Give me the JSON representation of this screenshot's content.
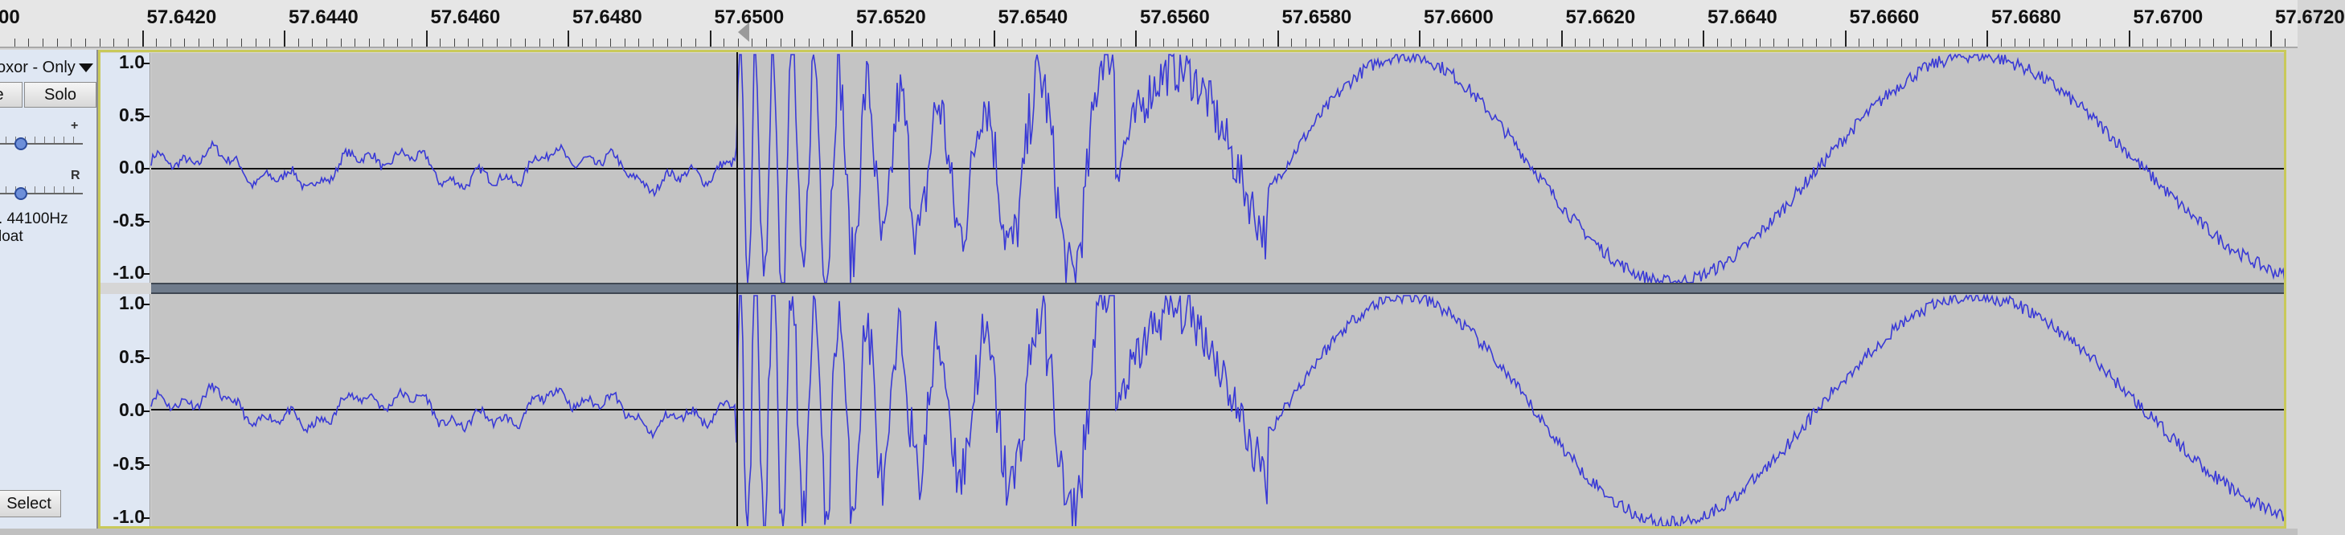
{
  "timeline": {
    "ticks": [
      {
        "label": "00"
      },
      {
        "label": "57.6420"
      },
      {
        "label": "57.6440"
      },
      {
        "label": "57.6460"
      },
      {
        "label": "57.6480"
      },
      {
        "label": "57.6500"
      },
      {
        "label": "57.6520"
      },
      {
        "label": "57.6540"
      },
      {
        "label": "57.6560"
      },
      {
        "label": "57.6580"
      },
      {
        "label": "57.6600"
      },
      {
        "label": "57.6620"
      },
      {
        "label": "57.6640"
      },
      {
        "label": "57.6660"
      },
      {
        "label": "57.6680"
      },
      {
        "label": "57.6700"
      },
      {
        "label": "57.6720"
      }
    ]
  },
  "track": {
    "name": "oxor - Only",
    "mute_label": "e",
    "solo_label": "Solo",
    "gain_plus": "+",
    "pan_right": "R",
    "rate_text": ". 44100Hz",
    "format_text": "loat",
    "select_label": "Select"
  },
  "amplitude_scale": {
    "labels": [
      "1.0",
      "0.5",
      "0.0",
      "-0.5",
      "-1.0"
    ]
  },
  "colors": {
    "waveform": "#3a3ad6",
    "background": "#c4c4c4",
    "frame": "#c9c95a"
  }
}
